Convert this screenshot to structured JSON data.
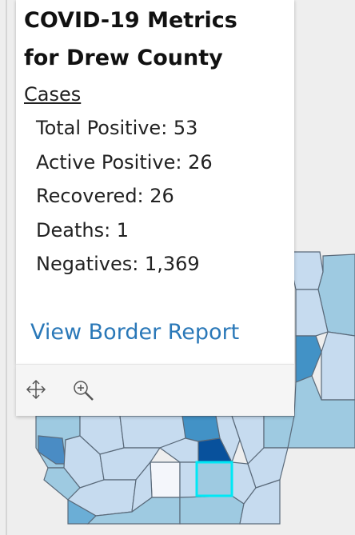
{
  "popup": {
    "title_lines": [
      "COVID-19 Metrics",
      "for Drew County"
    ],
    "section": "Cases",
    "items": [
      "Total Positive: 53",
      "Active Positive: 26",
      "Recovered: 26",
      "Deaths: 1",
      "Negatives: 1,369"
    ],
    "link": "View Border Report"
  }
}
